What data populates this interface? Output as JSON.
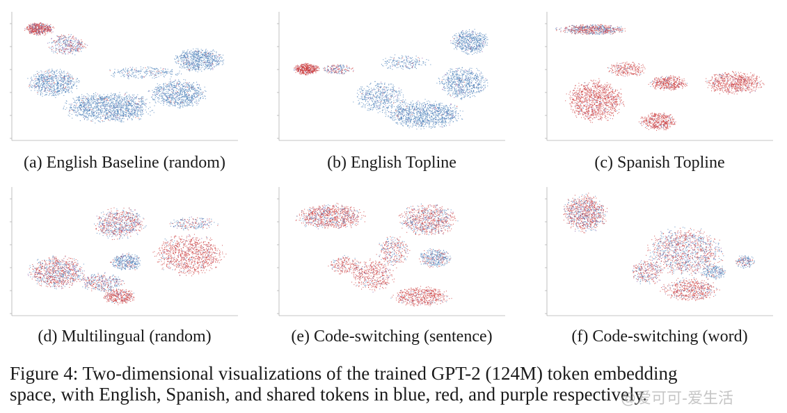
{
  "figure": {
    "subcaptions": {
      "a": "(a) English Baseline (random)",
      "b": "(b) English Topline",
      "c": "(c) Spanish Topline",
      "d": "(d) Multilingual (random)",
      "e": "(e) Code-switching (sentence)",
      "f": "(f) Code-switching (word)"
    },
    "caption_line1": "Figure 4: Two-dimensional visualizations of the trained GPT-2 (124M) token embedding",
    "caption_line2": "space, with English, Spanish, and shared tokens in blue, red, and purple respectively.",
    "watermark": "@爱可可-爱生活"
  },
  "colors": {
    "english": "#4a7fb8",
    "spanish": "#cc3b3b",
    "shared": "#8a5aa8",
    "axis": "#b0b0b0"
  },
  "chart_data": [
    {
      "type": "scatter",
      "panel": "a",
      "title": "(a) English Baseline (random)",
      "series": [
        {
          "name": "",
          "values": []
        }
      ]
    },
    {
      "type": "scatter",
      "panel": "b",
      "title": "(b) English Topline",
      "series": [
        {
          "name": "",
          "values": []
        }
      ]
    },
    {
      "type": "scatter",
      "panel": "c",
      "title": "(c) Spanish Topline",
      "series": [
        {
          "name": "",
          "values": []
        }
      ]
    },
    {
      "type": "scatter",
      "panel": "d",
      "title": "(d) Multilingual (random)",
      "series": [
        {
          "name": "",
          "values": []
        }
      ]
    },
    {
      "type": "scatter",
      "panel": "e",
      "title": "(e) Code-switching (sentence)",
      "series": [
        {
          "name": "",
          "values": []
        }
      ]
    },
    {
      "type": "scatter",
      "panel": "f",
      "title": "(f) Code-switching (word)",
      "series": [
        {
          "name": "",
          "values": []
        }
      ]
    }
  ]
}
